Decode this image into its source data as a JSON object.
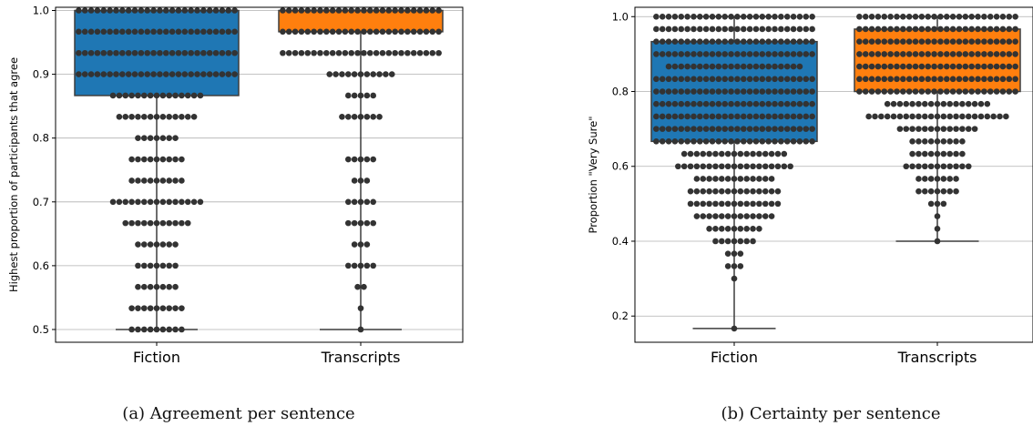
{
  "colors": {
    "fiction": "#1f77b4",
    "transcripts": "#ff7f0e",
    "points": "#333333",
    "grid": "#b0b0b0"
  },
  "chart_data": [
    {
      "type": "box+swarm",
      "caption": "(a) Agreement per sentence",
      "ylabel": "Highest proportion of participants that agree",
      "xlabel": "",
      "categories": [
        "Fiction",
        "Transcripts"
      ],
      "ylim": [
        0.48,
        1.005
      ],
      "yticks": [
        "0.5",
        "0.6",
        "0.7",
        "0.8",
        "0.9",
        "1.0"
      ],
      "grid": true,
      "boxes": [
        {
          "name": "Fiction",
          "whisker_low": 0.5,
          "q1": 0.8667,
          "q3": 1.0,
          "whisker_high": 1.0
        },
        {
          "name": "Transcripts",
          "whisker_low": 0.5,
          "q1": 0.9667,
          "q3": 1.0,
          "whisker_high": 1.0
        }
      ],
      "swarm": [
        {
          "name": "Fiction",
          "levels": [
            {
              "y": 1.0,
              "n": 26
            },
            {
              "y": 0.9667,
              "n": 26
            },
            {
              "y": 0.9333,
              "n": 26
            },
            {
              "y": 0.9,
              "n": 26
            },
            {
              "y": 0.8667,
              "n": 15
            },
            {
              "y": 0.8333,
              "n": 13
            },
            {
              "y": 0.8,
              "n": 7
            },
            {
              "y": 0.7667,
              "n": 9
            },
            {
              "y": 0.7333,
              "n": 9
            },
            {
              "y": 0.7,
              "n": 15
            },
            {
              "y": 0.6667,
              "n": 11
            },
            {
              "y": 0.6333,
              "n": 7
            },
            {
              "y": 0.6,
              "n": 7
            },
            {
              "y": 0.5667,
              "n": 7
            },
            {
              "y": 0.5333,
              "n": 9
            },
            {
              "y": 0.5,
              "n": 9
            }
          ]
        },
        {
          "name": "Transcripts",
          "levels": [
            {
              "y": 1.0,
              "n": 26
            },
            {
              "y": 0.9667,
              "n": 26
            },
            {
              "y": 0.9333,
              "n": 26
            },
            {
              "y": 0.9,
              "n": 11
            },
            {
              "y": 0.8667,
              "n": 5
            },
            {
              "y": 0.8333,
              "n": 7
            },
            {
              "y": 0.7667,
              "n": 5
            },
            {
              "y": 0.7333,
              "n": 3
            },
            {
              "y": 0.7,
              "n": 5
            },
            {
              "y": 0.6667,
              "n": 5
            },
            {
              "y": 0.6333,
              "n": 3
            },
            {
              "y": 0.6,
              "n": 5
            },
            {
              "y": 0.5667,
              "n": 2
            },
            {
              "y": 0.5333,
              "n": 1
            },
            {
              "y": 0.5,
              "n": 1
            }
          ]
        }
      ]
    },
    {
      "type": "box+swarm",
      "caption": "(b) Certainty per sentence",
      "ylabel": "Proportion \"Very Sure\"",
      "xlabel": "",
      "categories": [
        "Fiction",
        "Transcripts"
      ],
      "ylim": [
        0.13,
        1.025
      ],
      "yticks": [
        "0.2",
        "0.4",
        "0.6",
        "0.8",
        "1.0"
      ],
      "grid": true,
      "boxes": [
        {
          "name": "Fiction",
          "whisker_low": 0.1667,
          "q1": 0.6667,
          "q3": 0.9333,
          "whisker_high": 1.0
        },
        {
          "name": "Transcripts",
          "whisker_low": 0.4,
          "q1": 0.8,
          "q3": 0.9667,
          "whisker_high": 1.0
        }
      ],
      "swarm": [
        {
          "name": "Fiction",
          "levels": [
            {
              "y": 1.0,
              "n": 26
            },
            {
              "y": 0.9667,
              "n": 26
            },
            {
              "y": 0.9333,
              "n": 26
            },
            {
              "y": 0.9,
              "n": 26
            },
            {
              "y": 0.8667,
              "n": 22
            },
            {
              "y": 0.8333,
              "n": 26
            },
            {
              "y": 0.8,
              "n": 26
            },
            {
              "y": 0.7667,
              "n": 26
            },
            {
              "y": 0.7333,
              "n": 26
            },
            {
              "y": 0.7,
              "n": 26
            },
            {
              "y": 0.6667,
              "n": 26
            },
            {
              "y": 0.6333,
              "n": 17
            },
            {
              "y": 0.6,
              "n": 19
            },
            {
              "y": 0.5667,
              "n": 13
            },
            {
              "y": 0.5333,
              "n": 15
            },
            {
              "y": 0.5,
              "n": 15
            },
            {
              "y": 0.4667,
              "n": 13
            },
            {
              "y": 0.4333,
              "n": 9
            },
            {
              "y": 0.4,
              "n": 7
            },
            {
              "y": 0.3667,
              "n": 3
            },
            {
              "y": 0.3333,
              "n": 3
            },
            {
              "y": 0.3,
              "n": 1
            },
            {
              "y": 0.1667,
              "n": 1
            }
          ]
        },
        {
          "name": "Transcripts",
          "levels": [
            {
              "y": 1.0,
              "n": 26
            },
            {
              "y": 0.9667,
              "n": 26
            },
            {
              "y": 0.9333,
              "n": 26
            },
            {
              "y": 0.9,
              "n": 26
            },
            {
              "y": 0.8667,
              "n": 26
            },
            {
              "y": 0.8333,
              "n": 26
            },
            {
              "y": 0.8,
              "n": 26
            },
            {
              "y": 0.7667,
              "n": 17
            },
            {
              "y": 0.7333,
              "n": 23
            },
            {
              "y": 0.7,
              "n": 13
            },
            {
              "y": 0.6667,
              "n": 9
            },
            {
              "y": 0.6333,
              "n": 9
            },
            {
              "y": 0.6,
              "n": 11
            },
            {
              "y": 0.5667,
              "n": 7
            },
            {
              "y": 0.5333,
              "n": 7
            },
            {
              "y": 0.5,
              "n": 3
            },
            {
              "y": 0.4667,
              "n": 1
            },
            {
              "y": 0.4333,
              "n": 1
            },
            {
              "y": 0.4,
              "n": 1
            }
          ]
        }
      ]
    }
  ]
}
